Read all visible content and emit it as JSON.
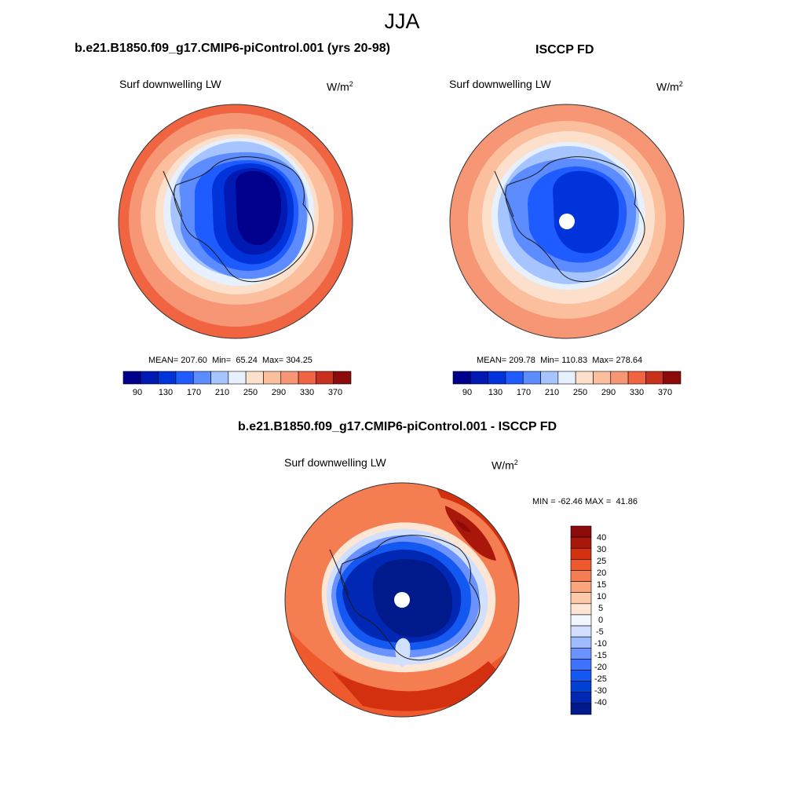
{
  "figure_title": "JJA",
  "colors": {
    "abs_palette": [
      "#00008c",
      "#0019b3",
      "#0033d9",
      "#1f5cff",
      "#5c8cff",
      "#a6c4ff",
      "#e6f0ff",
      "#fde0cb",
      "#fbbf9e",
      "#f79675",
      "#f06442",
      "#c8311c",
      "#8c0a0a"
    ],
    "diff_palette": [
      "#001a8c",
      "#0028b5",
      "#0041d4",
      "#1458f2",
      "#3d73ff",
      "#6b93ff",
      "#a0bbff",
      "#d2e0ff",
      "#f2f6ff",
      "#fde6d4",
      "#fccbaa",
      "#f9a57d",
      "#f57d52",
      "#ee5a2d",
      "#d2300f",
      "#a8170a",
      "#8c0a0a"
    ],
    "white_hole": "#ffffff"
  },
  "panels": [
    {
      "id": "model",
      "title": "b.e21.B1850.f09_g17.CMIP6-piControl.001 (yrs 20-98)",
      "variable": "Surf downwelling LW",
      "units_base": "W/m",
      "units_exp": "2",
      "stats": {
        "mean_label": "MEAN=",
        "mean": "207.60",
        "min_label": "Min=",
        "min": "65.24",
        "max_label": "Max=",
        "max": "304.25"
      }
    },
    {
      "id": "obs",
      "title": "ISCCP FD",
      "variable": "Surf downwelling LW",
      "units_base": "W/m",
      "units_exp": "2",
      "stats": {
        "mean_label": "MEAN=",
        "mean": "209.78",
        "min_label": "Min=",
        "min": "110.83",
        "max_label": "Max=",
        "max": "278.64"
      }
    },
    {
      "id": "diff",
      "title": "b.e21.B1850.f09_g17.CMIP6-piControl.001 - ISCCP FD",
      "variable": "Surf downwelling LW",
      "units_base": "W/m",
      "units_exp": "2",
      "stats": {
        "min_label": "MIN =",
        "min": "-62.46",
        "max_label": "MAX =",
        "max": "41.86"
      }
    }
  ],
  "chart_data": [
    {
      "type": "heatmap",
      "projection": "south polar stereographic",
      "title": "b.e21.B1850.f09_g17.CMIP6-piControl.001 (yrs 20-98)",
      "variable": "Surf downwelling LW",
      "units": "W/m^2",
      "season": "JJA",
      "contour_levels": [
        90,
        110,
        130,
        150,
        170,
        190,
        210,
        230,
        250,
        270,
        290,
        310,
        330,
        350,
        370
      ],
      "colorbar_ticks": [
        "90",
        "130",
        "170",
        "210",
        "250",
        "290",
        "330",
        "370"
      ],
      "mean": 207.6,
      "min": 65.24,
      "max": 304.25
    },
    {
      "type": "heatmap",
      "projection": "south polar stereographic",
      "title": "ISCCP FD",
      "variable": "Surf downwelling LW",
      "units": "W/m^2",
      "season": "JJA",
      "contour_levels": [
        90,
        110,
        130,
        150,
        170,
        190,
        210,
        230,
        250,
        270,
        290,
        310,
        330,
        350,
        370
      ],
      "colorbar_ticks": [
        "90",
        "130",
        "170",
        "210",
        "250",
        "290",
        "330",
        "370"
      ],
      "mean": 209.78,
      "min": 110.83,
      "max": 278.64
    },
    {
      "type": "heatmap",
      "projection": "south polar stereographic",
      "title": "b.e21.B1850.f09_g17.CMIP6-piControl.001 - ISCCP FD",
      "variable": "Surf downwelling LW",
      "units": "W/m^2",
      "season": "JJA",
      "contour_levels": [
        -40,
        -30,
        -25,
        -20,
        -15,
        -10,
        -5,
        0,
        5,
        10,
        15,
        20,
        25,
        30,
        40
      ],
      "colorbar_ticks": [
        "40",
        "30",
        "25",
        "20",
        "15",
        "10",
        "5",
        "0",
        "-5",
        "-10",
        "-15",
        "-20",
        "-25",
        "-30",
        "-40"
      ],
      "min": -62.46,
      "max": 41.86
    }
  ]
}
